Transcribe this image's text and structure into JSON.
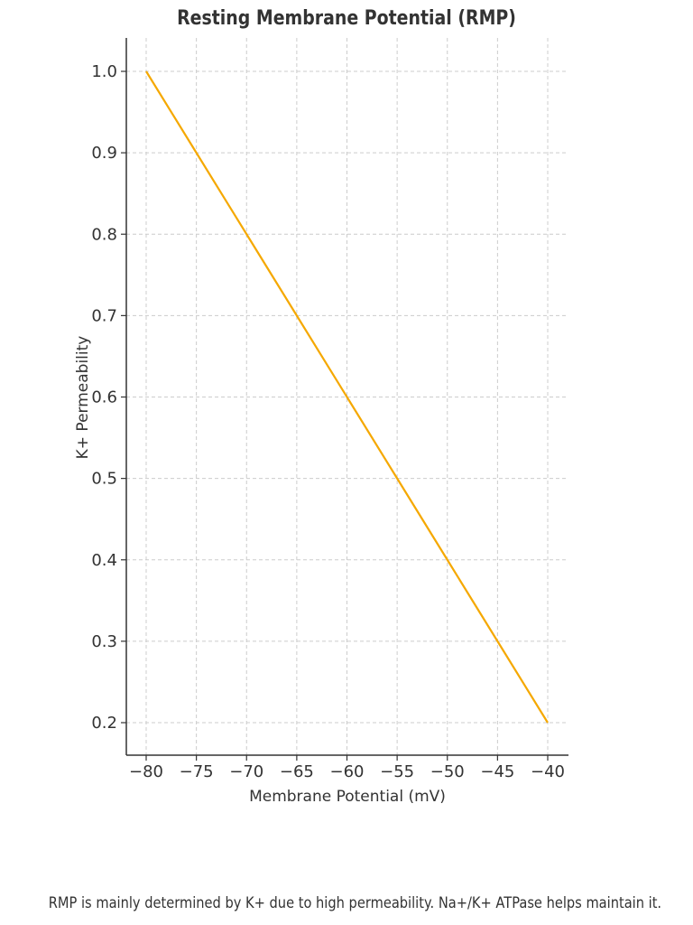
{
  "chart_data": {
    "type": "line",
    "title": "Resting Membrane Potential (RMP)",
    "xlabel": "Membrane Potential (mV)",
    "ylabel": "K+ Permeability",
    "x": [
      -80,
      -75,
      -70,
      -65,
      -60,
      -55,
      -50,
      -45,
      -40
    ],
    "series": [
      {
        "name": "K+ Permeability",
        "color": "#f5a800",
        "values": [
          1.0,
          0.9,
          0.8,
          0.7,
          0.6,
          0.5,
          0.4,
          0.3,
          0.2
        ]
      }
    ],
    "xticks": [
      "−80",
      "−75",
      "−70",
      "−65",
      "−60",
      "−55",
      "−50",
      "−45",
      "−40"
    ],
    "yticks": [
      "0.2",
      "0.3",
      "0.4",
      "0.5",
      "0.6",
      "0.7",
      "0.8",
      "0.9",
      "1.0"
    ],
    "xlim": [
      -82,
      -38.9
    ],
    "ylim": [
      0.16,
      1.04
    ],
    "grid": true,
    "legend": null
  },
  "caption": "RMP is mainly determined by K+ due to high permeability. Na+/K+ ATPase helps maintain it."
}
